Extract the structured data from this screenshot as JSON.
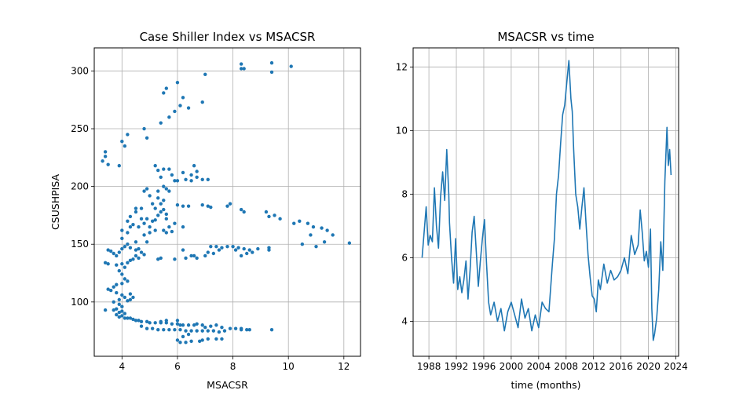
{
  "chart_data": [
    {
      "type": "scatter",
      "title": "Case Shiller Index vs MSACSR",
      "xlabel": "MSACSR",
      "ylabel": "CSUSHPISA",
      "xlim": [
        3.0,
        12.6
      ],
      "ylim": [
        53,
        320
      ],
      "xticks": [
        4,
        6,
        8,
        10,
        12
      ],
      "yticks": [
        100,
        150,
        200,
        250,
        300
      ],
      "grid": true,
      "color": "#1f77b4",
      "points": [
        [
          3.3,
          222
        ],
        [
          3.4,
          226
        ],
        [
          3.4,
          230
        ],
        [
          3.5,
          219
        ],
        [
          3.9,
          218
        ],
        [
          4.0,
          239
        ],
        [
          4.1,
          235
        ],
        [
          4.2,
          245
        ],
        [
          4.8,
          250
        ],
        [
          4.9,
          242
        ],
        [
          5.4,
          255
        ],
        [
          5.7,
          260
        ],
        [
          5.9,
          265
        ],
        [
          6.0,
          290
        ],
        [
          6.1,
          270
        ],
        [
          6.2,
          277
        ],
        [
          6.4,
          268
        ],
        [
          5.6,
          285
        ],
        [
          5.5,
          281
        ],
        [
          6.9,
          273
        ],
        [
          7.0,
          297
        ],
        [
          8.3,
          306
        ],
        [
          8.3,
          302
        ],
        [
          8.4,
          302
        ],
        [
          9.4,
          307
        ],
        [
          9.4,
          299
        ],
        [
          10.1,
          304
        ],
        [
          5.2,
          218
        ],
        [
          5.3,
          214
        ],
        [
          5.5,
          215
        ],
        [
          5.7,
          215
        ],
        [
          5.4,
          208
        ],
        [
          5.8,
          210
        ],
        [
          6.2,
          212
        ],
        [
          6.5,
          210
        ],
        [
          6.7,
          208
        ],
        [
          6.9,
          206
        ],
        [
          7.1,
          206
        ],
        [
          6.6,
          218
        ],
        [
          6.7,
          213
        ],
        [
          6.3,
          206
        ],
        [
          6.0,
          205
        ],
        [
          5.9,
          205
        ],
        [
          6.5,
          205
        ],
        [
          5.5,
          200
        ],
        [
          5.6,
          198
        ],
        [
          5.7,
          196
        ],
        [
          5.3,
          196
        ],
        [
          4.8,
          196
        ],
        [
          4.9,
          198
        ],
        [
          5.0,
          192
        ],
        [
          5.3,
          190
        ],
        [
          5.5,
          188
        ],
        [
          5.1,
          185
        ],
        [
          5.4,
          185
        ],
        [
          5.2,
          181
        ],
        [
          5.4,
          178
        ],
        [
          5.5,
          180
        ],
        [
          5.6,
          176
        ],
        [
          5.3,
          175
        ],
        [
          5.2,
          171
        ],
        [
          5.1,
          170
        ],
        [
          4.9,
          172
        ],
        [
          4.7,
          172
        ],
        [
          4.5,
          178
        ],
        [
          4.3,
          174
        ],
        [
          4.2,
          170
        ],
        [
          4.3,
          165
        ],
        [
          4.4,
          167
        ],
        [
          4.6,
          165
        ],
        [
          4.8,
          168
        ],
        [
          5.0,
          165
        ],
        [
          5.2,
          162
        ],
        [
          5.5,
          162
        ],
        [
          5.7,
          165
        ],
        [
          5.9,
          168
        ],
        [
          5.6,
          172
        ],
        [
          4.5,
          181
        ],
        [
          4.7,
          181
        ],
        [
          6.0,
          184
        ],
        [
          6.2,
          183
        ],
        [
          6.4,
          183
        ],
        [
          6.9,
          184
        ],
        [
          7.1,
          183
        ],
        [
          7.2,
          182
        ],
        [
          7.8,
          183
        ],
        [
          7.9,
          185
        ],
        [
          8.3,
          180
        ],
        [
          8.4,
          178
        ],
        [
          9.2,
          178
        ],
        [
          9.3,
          174
        ],
        [
          9.5,
          175
        ],
        [
          9.7,
          172
        ],
        [
          10.2,
          168
        ],
        [
          10.4,
          170
        ],
        [
          10.7,
          168
        ],
        [
          10.9,
          165
        ],
        [
          11.2,
          164
        ],
        [
          11.4,
          162
        ],
        [
          11.6,
          158
        ],
        [
          10.8,
          158
        ],
        [
          10.5,
          150
        ],
        [
          11.0,
          148
        ],
        [
          11.3,
          152
        ],
        [
          12.2,
          151
        ],
        [
          6.2,
          165
        ],
        [
          5.8,
          161
        ],
        [
          5.6,
          160
        ],
        [
          5.0,
          160
        ],
        [
          4.8,
          158
        ],
        [
          4.9,
          152
        ],
        [
          4.5,
          152
        ],
        [
          4.0,
          155
        ],
        [
          4.2,
          160
        ],
        [
          4.0,
          162
        ],
        [
          3.5,
          145
        ],
        [
          3.6,
          144
        ],
        [
          3.7,
          142
        ],
        [
          3.8,
          140
        ],
        [
          3.9,
          143
        ],
        [
          4.0,
          146
        ],
        [
          4.1,
          148
        ],
        [
          4.2,
          150
        ],
        [
          4.3,
          147
        ],
        [
          4.5,
          145
        ],
        [
          4.6,
          146
        ],
        [
          4.7,
          143
        ],
        [
          4.8,
          141
        ],
        [
          4.6,
          138
        ],
        [
          4.5,
          140
        ],
        [
          4.4,
          137
        ],
        [
          4.3,
          136
        ],
        [
          4.2,
          134
        ],
        [
          3.4,
          134
        ],
        [
          3.5,
          133
        ],
        [
          3.8,
          132
        ],
        [
          4.0,
          133
        ],
        [
          4.1,
          130
        ],
        [
          5.3,
          137
        ],
        [
          5.4,
          138
        ],
        [
          5.9,
          137
        ],
        [
          6.3,
          138
        ],
        [
          6.6,
          140
        ],
        [
          6.7,
          138
        ],
        [
          7.0,
          140
        ],
        [
          7.1,
          143
        ],
        [
          7.3,
          142
        ],
        [
          7.5,
          145
        ],
        [
          7.6,
          147
        ],
        [
          7.8,
          148
        ],
        [
          8.0,
          148
        ],
        [
          8.2,
          147
        ],
        [
          8.4,
          146
        ],
        [
          8.6,
          145
        ],
        [
          8.7,
          143
        ],
        [
          8.9,
          146
        ],
        [
          9.3,
          147
        ],
        [
          9.3,
          145
        ],
        [
          6.2,
          145
        ],
        [
          6.5,
          140
        ],
        [
          7.2,
          148
        ],
        [
          7.4,
          148
        ],
        [
          8.1,
          145
        ],
        [
          8.3,
          140
        ],
        [
          8.5,
          142
        ],
        [
          3.9,
          127
        ],
        [
          4.0,
          124
        ],
        [
          4.1,
          120
        ],
        [
          4.2,
          118
        ],
        [
          4.0,
          116
        ],
        [
          3.8,
          115
        ],
        [
          3.7,
          113
        ],
        [
          3.6,
          110
        ],
        [
          3.5,
          111
        ],
        [
          3.8,
          108
        ],
        [
          4.0,
          106
        ],
        [
          4.1,
          104
        ],
        [
          3.9,
          102
        ],
        [
          4.2,
          101
        ],
        [
          4.3,
          102
        ],
        [
          4.4,
          104
        ],
        [
          4.3,
          107
        ],
        [
          3.7,
          100
        ],
        [
          3.9,
          98
        ],
        [
          4.0,
          96
        ],
        [
          3.8,
          94
        ],
        [
          3.7,
          93
        ],
        [
          3.9,
          91
        ],
        [
          4.0,
          92
        ],
        [
          3.8,
          89
        ],
        [
          4.1,
          90
        ],
        [
          3.4,
          93
        ],
        [
          3.9,
          87
        ],
        [
          4.0,
          88
        ],
        [
          4.1,
          86
        ],
        [
          4.2,
          86
        ],
        [
          4.3,
          86
        ],
        [
          4.4,
          85
        ],
        [
          4.5,
          84
        ],
        [
          4.6,
          84
        ],
        [
          4.7,
          83
        ],
        [
          4.9,
          83
        ],
        [
          5.0,
          82
        ],
        [
          5.2,
          82
        ],
        [
          5.4,
          82
        ],
        [
          5.6,
          82
        ],
        [
          5.8,
          81
        ],
        [
          6.0,
          81
        ],
        [
          6.1,
          80
        ],
        [
          6.2,
          80
        ],
        [
          6.4,
          80
        ],
        [
          6.6,
          80
        ],
        [
          6.7,
          81
        ],
        [
          6.9,
          80
        ],
        [
          7.0,
          78
        ],
        [
          7.2,
          79
        ],
        [
          7.4,
          80
        ],
        [
          7.6,
          78
        ],
        [
          7.9,
          77
        ],
        [
          8.1,
          77
        ],
        [
          8.3,
          77
        ],
        [
          8.5,
          76
        ],
        [
          4.7,
          79
        ],
        [
          4.9,
          77
        ],
        [
          5.1,
          77
        ],
        [
          5.3,
          76
        ],
        [
          5.5,
          76
        ],
        [
          5.7,
          76
        ],
        [
          5.9,
          76
        ],
        [
          6.1,
          76
        ],
        [
          6.3,
          75
        ],
        [
          6.5,
          75
        ],
        [
          6.7,
          75
        ],
        [
          6.9,
          75
        ],
        [
          7.1,
          75
        ],
        [
          7.3,
          75
        ],
        [
          7.5,
          74
        ],
        [
          7.7,
          75
        ],
        [
          8.3,
          76
        ],
        [
          8.6,
          76
        ],
        [
          9.4,
          76
        ],
        [
          6.0,
          67
        ],
        [
          6.1,
          65
        ],
        [
          6.3,
          65
        ],
        [
          6.5,
          66
        ],
        [
          6.8,
          66
        ],
        [
          6.9,
          67
        ],
        [
          7.1,
          68
        ],
        [
          7.4,
          68
        ],
        [
          7.6,
          68
        ],
        [
          6.2,
          70
        ],
        [
          6.4,
          72
        ],
        [
          6.0,
          84
        ],
        [
          5.6,
          84
        ],
        [
          5.4,
          83
        ]
      ]
    },
    {
      "type": "line",
      "title": "MSACSR vs time",
      "xlabel": "time (months)",
      "ylabel": "",
      "xlim": [
        1985.7,
        2024.4
      ],
      "ylim": [
        2.9,
        12.6
      ],
      "xticks": [
        1988,
        1992,
        1996,
        2000,
        2004,
        2008,
        2012,
        2016,
        2020,
        2024
      ],
      "xtick_labels": [
        "1988",
        "1992",
        "1996",
        "2000",
        "2004",
        "2008",
        "2012",
        "2016",
        "2020",
        "2024"
      ],
      "yticks": [
        4,
        6,
        8,
        10,
        12
      ],
      "grid": true,
      "color": "#1f77b4",
      "series": [
        {
          "x": [
            1987.0,
            1987.3,
            1987.6,
            1987.9,
            1988.2,
            1988.5,
            1988.8,
            1989.1,
            1989.4,
            1989.7,
            1990.0,
            1990.3,
            1990.6,
            1990.9,
            1991.0,
            1991.3,
            1991.6,
            1991.9,
            1992.2,
            1992.5,
            1992.8,
            1993.1,
            1993.4,
            1993.7,
            1994.0,
            1994.3,
            1994.6,
            1994.9,
            1995.2,
            1995.5,
            1995.8,
            1996.1,
            1996.4,
            1996.7,
            1997.0,
            1997.5,
            1998.0,
            1998.5,
            1999.0,
            1999.5,
            2000.0,
            2000.5,
            2001.0,
            2001.5,
            2002.0,
            2002.5,
            2003.0,
            2003.5,
            2004.0,
            2004.5,
            2005.0,
            2005.5,
            2006.0,
            2006.3,
            2006.6,
            2006.9,
            2007.2,
            2007.5,
            2007.8,
            2008.1,
            2008.4,
            2008.7,
            2008.9,
            2009.1,
            2009.4,
            2009.7,
            2010.0,
            2010.3,
            2010.6,
            2010.9,
            2011.2,
            2011.5,
            2011.8,
            2012.1,
            2012.4,
            2012.7,
            2013.0,
            2013.5,
            2014.0,
            2014.5,
            2015.0,
            2015.5,
            2016.0,
            2016.5,
            2017.0,
            2017.5,
            2018.0,
            2018.5,
            2018.8,
            2019.1,
            2019.4,
            2019.7,
            2020.0,
            2020.3,
            2020.5,
            2020.7,
            2020.9,
            2021.2,
            2021.5,
            2021.8,
            2022.1,
            2022.4,
            2022.7,
            2022.9,
            2023.1,
            2023.3
          ],
          "y": [
            6.0,
            6.8,
            7.6,
            6.4,
            6.7,
            6.5,
            8.2,
            7.0,
            6.3,
            7.9,
            8.7,
            7.8,
            9.4,
            8.0,
            7.1,
            6.0,
            5.2,
            6.6,
            5.0,
            5.4,
            4.9,
            5.3,
            5.9,
            4.7,
            5.6,
            6.8,
            7.3,
            6.2,
            5.1,
            5.9,
            6.6,
            7.2,
            5.8,
            4.6,
            4.2,
            4.6,
            4.0,
            4.4,
            3.7,
            4.3,
            4.6,
            4.2,
            3.8,
            4.7,
            4.1,
            4.4,
            3.7,
            4.2,
            3.8,
            4.6,
            4.4,
            4.3,
            5.8,
            6.6,
            8.0,
            8.6,
            9.6,
            10.5,
            10.8,
            11.5,
            12.2,
            11.0,
            10.6,
            9.4,
            8.0,
            7.6,
            6.9,
            7.6,
            8.2,
            7.1,
            6.1,
            5.4,
            4.8,
            4.7,
            4.3,
            5.3,
            5.0,
            5.8,
            5.2,
            5.6,
            5.3,
            5.4,
            5.6,
            6.0,
            5.5,
            6.7,
            6.1,
            6.4,
            7.5,
            6.8,
            5.9,
            6.2,
            5.7,
            6.9,
            4.4,
            3.4,
            3.6,
            4.1,
            5.0,
            6.5,
            5.6,
            8.4,
            10.1,
            8.9,
            9.4,
            8.6
          ]
        }
      ]
    }
  ]
}
